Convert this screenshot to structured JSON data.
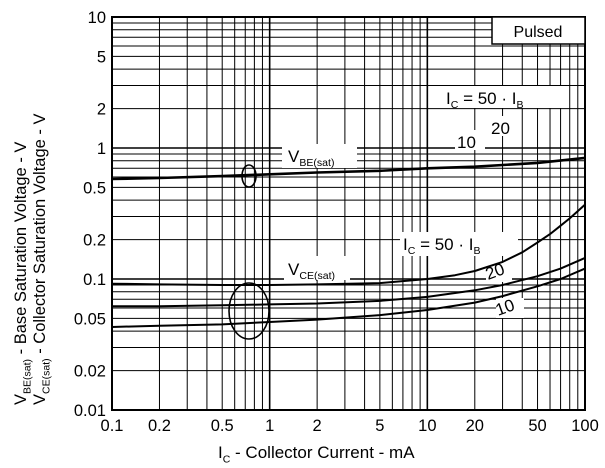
{
  "chart_data": {
    "type": "line",
    "x_scale": "log",
    "y_scale": "log",
    "xlim": [
      0.1,
      100
    ],
    "ylim": [
      0.01,
      10
    ],
    "grid": true,
    "x_ticks": [
      "0.1",
      "0.2",
      "0.5",
      "1",
      "2",
      "5",
      "10",
      "20",
      "50",
      "100"
    ],
    "x_tick_values": [
      0.1,
      0.2,
      0.5,
      1,
      2,
      5,
      10,
      20,
      50,
      100
    ],
    "y_ticks": [
      "0.01",
      "0.02",
      "0.05",
      "0.1",
      "0.2",
      "0.5",
      "1",
      "2",
      "5",
      "10"
    ],
    "y_tick_values": [
      0.01,
      0.02,
      0.05,
      0.1,
      0.2,
      0.5,
      1,
      2,
      5,
      10
    ],
    "xlabel": {
      "main": "I",
      "sub": "C",
      "rest": " - Collector Current - mA"
    },
    "ylabel_1": {
      "main": "V",
      "sub": "BE(sat)",
      "rest": " - Base Saturation Voltage - V"
    },
    "ylabel_2": {
      "main": "V",
      "sub": "CE(sat)",
      "rest": " - Collector Saturation Voltage - V"
    },
    "legend_box": "Pulsed",
    "series": [
      {
        "group": "VBE(sat)",
        "x": [
          0.1,
          0.2,
          0.5,
          1,
          2,
          5,
          10,
          20,
          50,
          100
        ],
        "values": [
          0.58,
          0.59,
          0.61,
          0.63,
          0.65,
          0.67,
          0.7,
          0.72,
          0.77,
          0.84
        ]
      },
      {
        "group": "VCE(sat)",
        "ratio": "50",
        "x": [
          0.1,
          0.2,
          0.5,
          1,
          2,
          5,
          10,
          15,
          20,
          30,
          40,
          50,
          60,
          70,
          80,
          90,
          100
        ],
        "values": [
          0.092,
          0.091,
          0.09,
          0.09,
          0.091,
          0.093,
          0.1,
          0.107,
          0.115,
          0.135,
          0.16,
          0.19,
          0.22,
          0.255,
          0.29,
          0.33,
          0.37
        ]
      },
      {
        "group": "VCE(sat)",
        "ratio": "20",
        "x": [
          0.1,
          0.2,
          0.5,
          1,
          2,
          5,
          10,
          20,
          30,
          50,
          70,
          100
        ],
        "values": [
          0.062,
          0.062,
          0.063,
          0.064,
          0.065,
          0.068,
          0.073,
          0.082,
          0.09,
          0.105,
          0.12,
          0.145
        ]
      },
      {
        "group": "VCE(sat)",
        "ratio": "10",
        "x": [
          0.1,
          0.2,
          0.5,
          1,
          2,
          5,
          10,
          20,
          30,
          50,
          70,
          100
        ],
        "values": [
          0.043,
          0.044,
          0.045,
          0.047,
          0.049,
          0.053,
          0.058,
          0.066,
          0.074,
          0.088,
          0.1,
          0.12
        ]
      }
    ],
    "annotations": {
      "vbe_label": {
        "main": "V",
        "sub": "BE(sat)"
      },
      "vce_label": {
        "main": "V",
        "sub": "CE(sat)"
      },
      "vbe_ratio": {
        "prefix": "I",
        "sub_c": "C",
        "mid": " = 50 · I",
        "sub_b": "B"
      },
      "vce_ratio": {
        "prefix": "I",
        "sub_c": "C",
        "mid": " = 50 · I",
        "sub_b": "B"
      },
      "vbe_ratio_20": "20",
      "vbe_ratio_10": "10",
      "vce_ratio_20": "20",
      "vce_ratio_10": "10"
    }
  }
}
